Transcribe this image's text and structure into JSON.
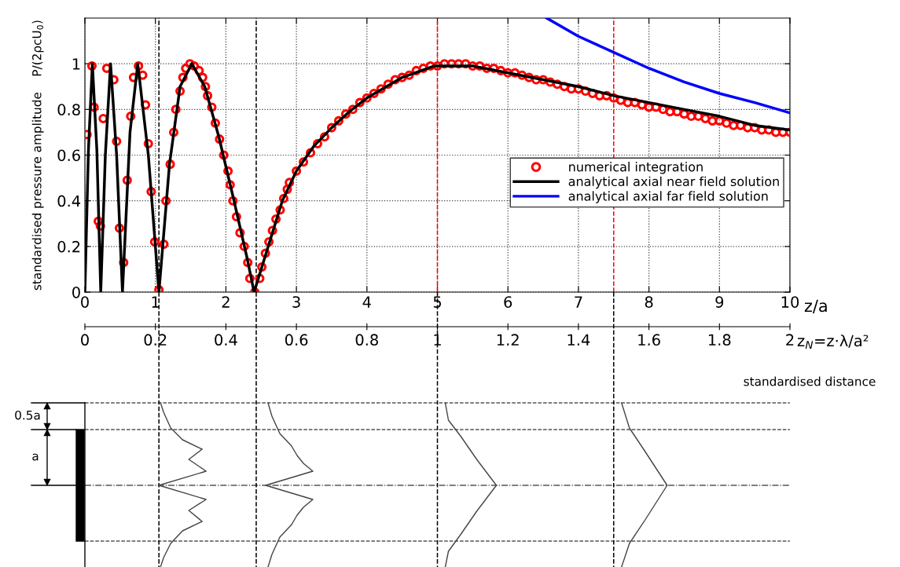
{
  "chart_data": {
    "type": "line",
    "xlabel": "z/a",
    "ylabel": "standardised pressure amplitude    P/(2ρcU$_{0}$)",
    "x2label": "z$_{N}$=z·λ/a²",
    "xlim": [
      0,
      10
    ],
    "xticks": [
      0,
      1,
      2,
      3,
      4,
      5,
      6,
      7,
      8,
      9,
      10
    ],
    "x2lim": [
      0,
      2
    ],
    "x2ticks": [
      0,
      0.2,
      0.4,
      0.6,
      0.8,
      1,
      1.2,
      1.4,
      1.6,
      1.8,
      2
    ],
    "ylim": [
      0,
      1.2
    ],
    "yticks": [
      0,
      0.2,
      0.4,
      0.6,
      0.8,
      1
    ],
    "grid": true,
    "legend": "center right",
    "series": [
      {
        "name": "numerical integration",
        "type": "scatter",
        "marker": "circle",
        "color": "#ff0000",
        "x": [
          0.03,
          0.1,
          0.13,
          0.19,
          0.22,
          0.26,
          0.31,
          0.41,
          0.45,
          0.49,
          0.55,
          0.6,
          0.65,
          0.69,
          0.76,
          0.82,
          0.86,
          0.9,
          0.94,
          0.99,
          1.05,
          1.12,
          1.15,
          1.21,
          1.26,
          1.29,
          1.35,
          1.39,
          1.43,
          1.49,
          1.55,
          1.62,
          1.67,
          1.71,
          1.74,
          1.8,
          1.85,
          1.91,
          1.97,
          2.03,
          2.06,
          2.1,
          2.15,
          2.2,
          2.26,
          2.31,
          2.34,
          2.41,
          2.48,
          2.51,
          2.56,
          2.61,
          2.66,
          2.71,
          2.77,
          2.82,
          2.87,
          2.9,
          3.0,
          3.1,
          3.2,
          3.3,
          3.4,
          3.5,
          3.6,
          3.7,
          3.8,
          3.9,
          4.0,
          4.1,
          4.2,
          4.3,
          4.4,
          4.5,
          4.6,
          4.7,
          4.8,
          4.9,
          5.0,
          5.1,
          5.2,
          5.3,
          5.4,
          5.5,
          5.6,
          5.7,
          5.8,
          5.9,
          6.0,
          6.1,
          6.2,
          6.3,
          6.4,
          6.5,
          6.6,
          6.7,
          6.8,
          6.9,
          7.0,
          7.1,
          7.2,
          7.3,
          7.4,
          7.5,
          7.6,
          7.7,
          7.8,
          7.9,
          8.0,
          8.1,
          8.2,
          8.3,
          8.4,
          8.5,
          8.6,
          8.7,
          8.8,
          8.9,
          9.0,
          9.1,
          9.2,
          9.3,
          9.4,
          9.5,
          9.6,
          9.7,
          9.8,
          9.9,
          10.0
        ],
        "values": [
          0.69,
          0.99,
          0.81,
          0.31,
          0.29,
          0.76,
          0.98,
          0.93,
          0.66,
          0.28,
          0.13,
          0.49,
          0.77,
          0.94,
          0.99,
          0.95,
          0.82,
          0.65,
          0.44,
          0.22,
          0.01,
          0.21,
          0.4,
          0.56,
          0.7,
          0.8,
          0.88,
          0.94,
          0.98,
          1.0,
          0.99,
          0.97,
          0.94,
          0.9,
          0.86,
          0.81,
          0.74,
          0.67,
          0.6,
          0.53,
          0.47,
          0.4,
          0.33,
          0.26,
          0.2,
          0.13,
          0.06,
          0.0,
          0.06,
          0.11,
          0.17,
          0.22,
          0.27,
          0.32,
          0.36,
          0.41,
          0.45,
          0.48,
          0.53,
          0.57,
          0.61,
          0.65,
          0.68,
          0.72,
          0.75,
          0.78,
          0.8,
          0.83,
          0.85,
          0.87,
          0.89,
          0.91,
          0.93,
          0.94,
          0.95,
          0.97,
          0.98,
          0.99,
          0.99,
          1.0,
          1.0,
          1.0,
          1.0,
          0.99,
          0.99,
          0.98,
          0.98,
          0.97,
          0.96,
          0.96,
          0.95,
          0.94,
          0.93,
          0.93,
          0.92,
          0.91,
          0.9,
          0.89,
          0.89,
          0.88,
          0.87,
          0.86,
          0.86,
          0.85,
          0.84,
          0.83,
          0.83,
          0.82,
          0.81,
          0.81,
          0.8,
          0.79,
          0.79,
          0.78,
          0.77,
          0.77,
          0.76,
          0.75,
          0.75,
          0.74,
          0.73,
          0.73,
          0.72,
          0.72,
          0.71,
          0.71,
          0.7,
          0.7,
          0.7
        ]
      },
      {
        "name": "analytical axial near field solution",
        "color": "#000000",
        "x": [
          0,
          0.05,
          0.106,
          0.17,
          0.225,
          0.29,
          0.364,
          0.45,
          0.533,
          0.64,
          0.75,
          0.9,
          1.05,
          1.2,
          1.35,
          1.517,
          1.7,
          1.9,
          2.1,
          2.3,
          2.4,
          2.6,
          2.8,
          3.0,
          3.25,
          3.5,
          3.75,
          4.0,
          4.5,
          4.95,
          5.5,
          6.0,
          6.5,
          7.0,
          7.5,
          8.0,
          8.5,
          9.0,
          9.5,
          10
        ],
        "values": [
          0,
          0.62,
          1.0,
          0.62,
          0,
          0.6,
          1.0,
          0.6,
          0,
          0.7,
          1.0,
          0.6,
          0,
          0.56,
          0.9,
          1.0,
          0.9,
          0.68,
          0.42,
          0.15,
          0,
          0.2,
          0.4,
          0.53,
          0.64,
          0.72,
          0.79,
          0.85,
          0.94,
          0.99,
          0.99,
          0.96,
          0.93,
          0.9,
          0.86,
          0.83,
          0.8,
          0.77,
          0.73,
          0.71
        ]
      },
      {
        "name": "analytical axial far field solution",
        "color": "#0000ff",
        "x": [
          6.55,
          7.0,
          7.5,
          8.0,
          8.5,
          9.0,
          9.5,
          10
        ],
        "values": [
          1.2,
          1.12,
          1.05,
          0.98,
          0.92,
          0.87,
          0.83,
          0.785
        ]
      }
    ],
    "ref_lines": [
      {
        "axis": "x",
        "value": 1.05,
        "color": "#000000",
        "line_style": "dashed"
      },
      {
        "axis": "x",
        "value": 2.43,
        "color": "#000000",
        "line_style": "dashed"
      },
      {
        "axis": "x",
        "value": 5,
        "color": "#ff0000",
        "line_style": "dashed"
      },
      {
        "axis": "x",
        "value": 7.5,
        "color": "#ff0000",
        "line_style": "dashed"
      }
    ],
    "annotations": [
      "standardised distance",
      "0.5a",
      "a"
    ]
  }
}
